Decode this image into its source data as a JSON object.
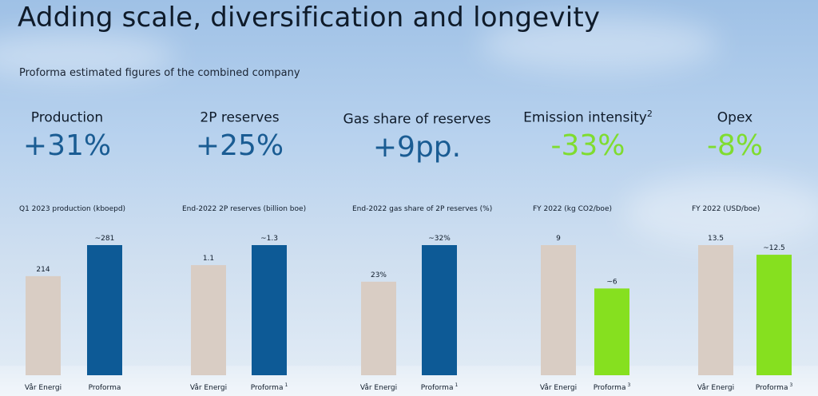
{
  "title": "Adding scale, diversification and longevity",
  "subtitle": "Proforma estimated figures of the combined company",
  "kpis": [
    {
      "label": "Production",
      "sup": "",
      "value": "+31%",
      "color": "#1a5c93"
    },
    {
      "label": "2P reserves",
      "sup": "",
      "value": "+25%",
      "color": "#1a5c93"
    },
    {
      "label": "Gas share of reserves",
      "sup": "",
      "value": "+9pp.",
      "color": "#1a5c93"
    },
    {
      "label": "Emission intensity",
      "sup": "2",
      "value": "-33%",
      "color": "#7fdc2f"
    },
    {
      "label": "Opex",
      "sup": "",
      "value": "-8%",
      "color": "#7fdc2f"
    }
  ],
  "colors": {
    "var_energi": "#d9cdc4",
    "proforma_blue": "#0d5a96",
    "proforma_green": "#86e01f"
  },
  "chart_data": [
    {
      "type": "bar",
      "title": "Q1 2023 production (kboepd)",
      "categories": [
        "Vår Energi",
        "Proforma"
      ],
      "category_sups": [
        "",
        ""
      ],
      "values": [
        214,
        281
      ],
      "data_labels": [
        "214",
        "~281"
      ],
      "ylim": [
        0,
        281
      ],
      "bar_colors": [
        "#d9cdc4",
        "#0d5a96"
      ]
    },
    {
      "type": "bar",
      "title": "End-2022 2P reserves (billion boe)",
      "categories": [
        "Vår Energi",
        "Proforma"
      ],
      "category_sups": [
        "",
        "1"
      ],
      "values": [
        1.1,
        1.3
      ],
      "data_labels": [
        "1.1",
        "~1.3"
      ],
      "ylim": [
        0,
        1.3
      ],
      "bar_colors": [
        "#d9cdc4",
        "#0d5a96"
      ]
    },
    {
      "type": "bar",
      "title": "End-2022 gas share of 2P reserves (%)",
      "categories": [
        "Vår Energi",
        "Proforma"
      ],
      "category_sups": [
        "",
        "1"
      ],
      "values": [
        23,
        32
      ],
      "data_labels": [
        "23%",
        "~32%"
      ],
      "ylim": [
        0,
        32
      ],
      "bar_colors": [
        "#d9cdc4",
        "#0d5a96"
      ]
    },
    {
      "type": "bar",
      "title": "FY 2022 (kg CO2/boe)",
      "categories": [
        "Vår Energi",
        "Proforma"
      ],
      "category_sups": [
        "",
        "3"
      ],
      "values": [
        9,
        6
      ],
      "data_labels": [
        "9",
        "~6"
      ],
      "ylim": [
        0,
        9
      ],
      "bar_colors": [
        "#d9cdc4",
        "#86e01f"
      ]
    },
    {
      "type": "bar",
      "title": "FY 2022 (USD/boe)",
      "categories": [
        "Vår Energi",
        "Proforma"
      ],
      "category_sups": [
        "",
        "3"
      ],
      "values": [
        13.5,
        12.5
      ],
      "data_labels": [
        "13.5",
        "~12.5"
      ],
      "ylim": [
        0,
        13.5
      ],
      "bar_colors": [
        "#d9cdc4",
        "#86e01f"
      ]
    }
  ]
}
